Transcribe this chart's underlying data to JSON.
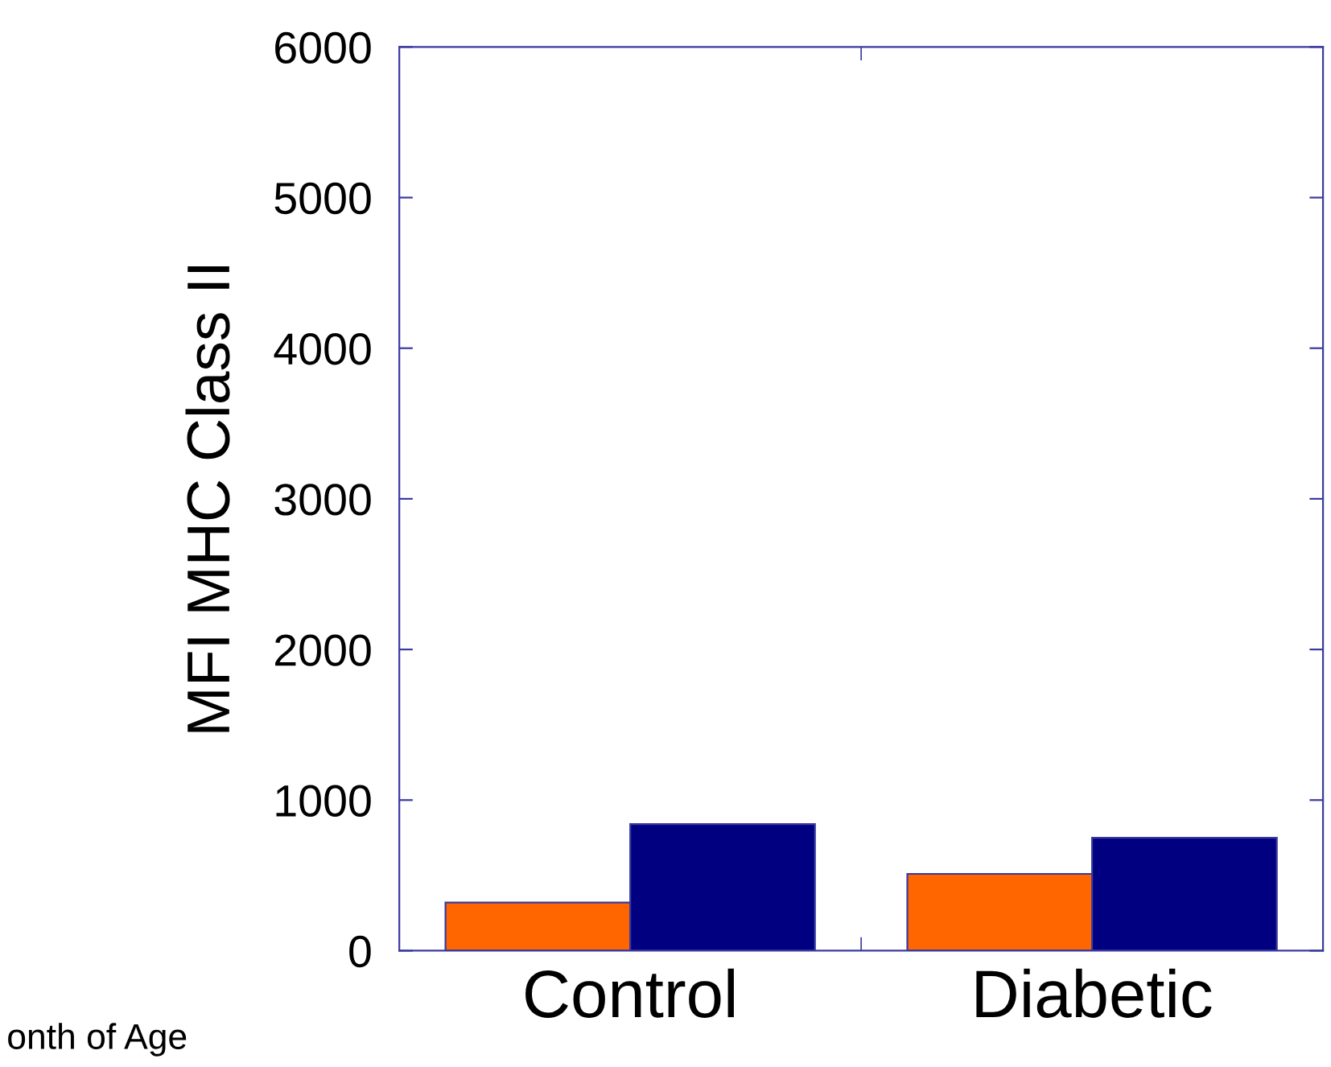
{
  "chart_data": {
    "type": "bar",
    "ylabel": "MFI MHC Class II",
    "categories": [
      "Control",
      "Diabetic"
    ],
    "series": [
      {
        "color": "#ff6600",
        "values": [
          320,
          510
        ]
      },
      {
        "color": "#000080",
        "values": [
          840,
          750
        ]
      }
    ],
    "ylim": [
      0,
      6000
    ],
    "yticks": [
      0,
      1000,
      2000,
      3000,
      4000,
      5000,
      6000
    ],
    "grid": false,
    "annotations": [
      "onth of Age"
    ]
  }
}
